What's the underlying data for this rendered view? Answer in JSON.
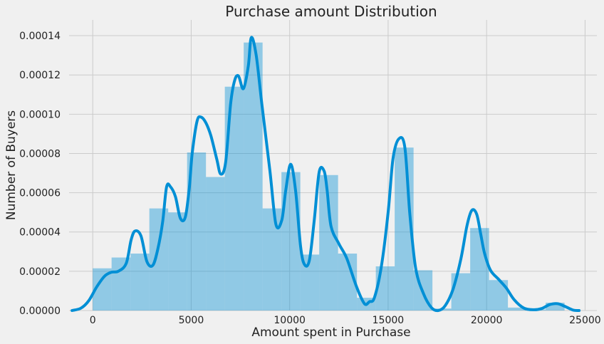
{
  "chart_data": {
    "type": "histogram_kde",
    "title": "Purchase amount Distribution",
    "xlabel": "Amount spent in Purchase",
    "ylabel": "Number of Buyers",
    "xlim": [
      -1200,
      25600
    ],
    "ylim": [
      0,
      0.000148
    ],
    "xticks": [
      0,
      5000,
      10000,
      15000,
      20000,
      25000
    ],
    "xtick_labels": [
      "0",
      "5000",
      "10000",
      "15000",
      "20000",
      "25000"
    ],
    "yticks": [
      0,
      2e-05,
      4e-05,
      6e-05,
      8e-05,
      0.0001,
      0.00012,
      0.00014
    ],
    "ytick_labels": [
      "0.00000",
      "0.00002",
      "0.00004",
      "0.00006",
      "0.00008",
      "0.00010",
      "0.00012",
      "0.00014"
    ],
    "grid": true,
    "colors": {
      "bars": "#008fd5",
      "line": "#008fd5",
      "background": "#f0f0f0",
      "grid": "#cbcbcb"
    },
    "bins": [
      {
        "x0": 0,
        "x1": 958,
        "value": 2.15e-05
      },
      {
        "x0": 958,
        "x1": 1917,
        "value": 2.7e-05
      },
      {
        "x0": 1917,
        "x1": 2875,
        "value": 2.9e-05
      },
      {
        "x0": 2875,
        "x1": 3833,
        "value": 5.2e-05
      },
      {
        "x0": 3833,
        "x1": 4792,
        "value": 5e-05
      },
      {
        "x0": 4792,
        "x1": 5750,
        "value": 8.05e-05
      },
      {
        "x0": 5750,
        "x1": 6708,
        "value": 6.8e-05
      },
      {
        "x0": 6708,
        "x1": 7667,
        "value": 0.000114
      },
      {
        "x0": 7667,
        "x1": 8625,
        "value": 0.0001365
      },
      {
        "x0": 8625,
        "x1": 9583,
        "value": 5.2e-05
      },
      {
        "x0": 9583,
        "x1": 10542,
        "value": 7.05e-05
      },
      {
        "x0": 10542,
        "x1": 11500,
        "value": 2.85e-05
      },
      {
        "x0": 11500,
        "x1": 12458,
        "value": 6.9e-05
      },
      {
        "x0": 12458,
        "x1": 13417,
        "value": 2.9e-05
      },
      {
        "x0": 13417,
        "x1": 14375,
        "value": 6.5e-06
      },
      {
        "x0": 14375,
        "x1": 15333,
        "value": 2.25e-05
      },
      {
        "x0": 15333,
        "x1": 16292,
        "value": 8.3e-05
      },
      {
        "x0": 16292,
        "x1": 17250,
        "value": 2.05e-05
      },
      {
        "x0": 17250,
        "x1": 18208,
        "value": 1e-06
      },
      {
        "x0": 18208,
        "x1": 19167,
        "value": 1.9e-05
      },
      {
        "x0": 19167,
        "x1": 20125,
        "value": 4.2e-05
      },
      {
        "x0": 20125,
        "x1": 21083,
        "value": 1.55e-05
      },
      {
        "x0": 21083,
        "x1": 22042,
        "value": 1.5e-06
      },
      {
        "x0": 22042,
        "x1": 23000,
        "value": 5e-07
      },
      {
        "x0": 23000,
        "x1": 23958,
        "value": 4e-06
      }
    ],
    "kde": {
      "x": [
        -1050,
        -600,
        -200,
        200,
        600,
        950,
        1300,
        1700,
        1950,
        2150,
        2450,
        2750,
        3050,
        3300,
        3550,
        3750,
        3950,
        4200,
        4450,
        4700,
        4900,
        5050,
        5300,
        5500,
        5750,
        6000,
        6300,
        6500,
        6750,
        7000,
        7200,
        7400,
        7650,
        7900,
        8050,
        8300,
        8600,
        9000,
        9300,
        9600,
        9800,
        10050,
        10300,
        10550,
        10750,
        11000,
        11250,
        11500,
        11750,
        11900,
        12100,
        12500,
        12900,
        13400,
        13800,
        14050,
        14300,
        14650,
        15000,
        15250,
        15550,
        15850,
        16100,
        16400,
        16800,
        17200,
        17550,
        17900,
        18300,
        18700,
        19000,
        19250,
        19500,
        19700,
        19900,
        20200,
        20600,
        21000,
        21400,
        21900,
        22400,
        22800,
        23200,
        23600,
        24000,
        24400,
        24700
      ],
      "y": [
        0,
        1.2e-06,
        5e-06,
        1.2e-05,
        1.75e-05,
        1.95e-05,
        2e-05,
        2.4e-05,
        3.6e-05,
        4.05e-05,
        3.8e-05,
        2.5e-05,
        2.3e-05,
        3.1e-05,
        4.5e-05,
        6.3e-05,
        6.3e-05,
        5.8e-05,
        4.7e-05,
        4.75e-05,
        6.2e-05,
        8e-05,
        9.65e-05,
        9.85e-05,
        9.55e-05,
        8.9e-05,
        7.7e-05,
        6.95e-05,
        7.55e-05,
        0.000105,
        0.000117,
        0.0001195,
        0.000113,
        0.0001245,
        0.000139,
        0.00013,
        0.000104,
        7.1e-05,
        4.4e-05,
        4.6e-05,
        6.1e-05,
        7.45e-05,
        6.1e-05,
        3.3e-05,
        2.35e-05,
        2.55e-05,
        4.6e-05,
        7.05e-05,
        7.1e-05,
        6.15e-05,
        4.3e-05,
        3.4e-05,
        2.65e-05,
        1.2e-05,
        3.5e-06,
        4.5e-06,
        6.5e-06,
        2.2e-05,
        5e-05,
        7.75e-05,
        8.75e-05,
        8.3e-05,
        4.95e-05,
        2.15e-05,
        8.5e-06,
        1.5e-06,
        0,
        2.5e-06,
        1.1e-05,
        2.65e-05,
        4.3e-05,
        5.1e-05,
        4.9e-05,
        3.9e-05,
        2.9e-05,
        2.05e-05,
        1.6e-05,
        1.15e-05,
        5.5e-06,
        1.2e-06,
        4e-07,
        1e-06,
        3e-06,
        3.5e-06,
        2e-06,
        2e-07,
        0
      ]
    }
  }
}
